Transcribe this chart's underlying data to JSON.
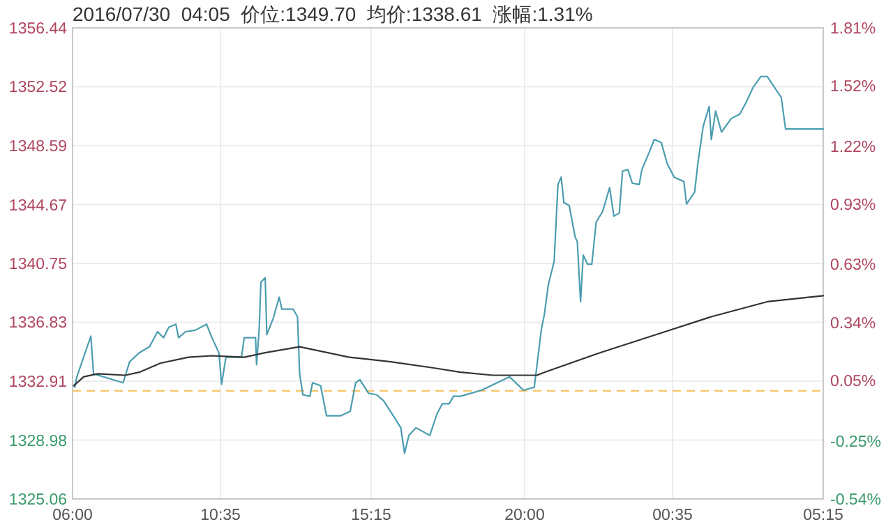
{
  "chart_data": {
    "type": "line",
    "title": "2016/07/30  04:05  价位:1349.70  均价:1338.61  涨幅:1.31%",
    "xlim": [
      "2016-07-29T06:00",
      "2016-07-30T05:15"
    ],
    "xticks": [
      {
        "value": "2016-07-29T06:00",
        "label": "06:00"
      },
      {
        "value": "2016-07-29T10:35",
        "label": "10:35"
      },
      {
        "value": "2016-07-29T15:15",
        "label": "15:15"
      },
      {
        "value": "2016-07-29T20:00",
        "label": "20:00"
      },
      {
        "value": "2016-07-30T00:35",
        "label": "00:35"
      },
      {
        "value": "2016-07-30T05:15",
        "label": "05:15"
      }
    ],
    "ylim": [
      1325.06,
      1356.44
    ],
    "yticks": [
      1325.06,
      1328.98,
      1332.91,
      1336.83,
      1340.75,
      1344.67,
      1348.59,
      1352.52,
      1356.44
    ],
    "y2lim": [
      -0.54,
      1.81
    ],
    "y2ticks": [
      {
        "value": -0.54,
        "label": "-0.54%"
      },
      {
        "value": -0.25,
        "label": "-0.25%"
      },
      {
        "value": 0.05,
        "label": "0.05%"
      },
      {
        "value": 0.34,
        "label": "0.34%"
      },
      {
        "value": 0.63,
        "label": "0.63%"
      },
      {
        "value": 0.93,
        "label": "0.93%"
      },
      {
        "value": 1.22,
        "label": "1.22%"
      },
      {
        "value": 1.52,
        "label": "1.52%"
      },
      {
        "value": 1.81,
        "label": "1.81%"
      }
    ],
    "grid": true,
    "line_style": "solid",
    "ref_lines": [
      {
        "axis": "y",
        "value": 1332.26,
        "color": "#f5c566",
        "line_style": "dashed"
      }
    ],
    "series": [
      {
        "color": "#4b9db0",
        "x": [
          "2016-07-29T06:04",
          "2016-07-29T06:08",
          "2016-07-29T06:34",
          "2016-07-29T06:39",
          "2016-07-29T07:34",
          "2016-07-29T07:46",
          "2016-07-29T08:04",
          "2016-07-29T08:23",
          "2016-07-29T08:38",
          "2016-07-29T08:49",
          "2016-07-29T08:59",
          "2016-07-29T09:12",
          "2016-07-29T09:17",
          "2016-07-29T09:30",
          "2016-07-29T09:48",
          "2016-07-29T10:09",
          "2016-07-29T10:19",
          "2016-07-29T10:32",
          "2016-07-29T10:37",
          "2016-07-29T10:45",
          "2016-07-29T10:58",
          "2016-07-29T11:14",
          "2016-07-29T11:19",
          "2016-07-29T11:40",
          "2016-07-29T11:42",
          "2016-07-29T11:47",
          "2016-07-29T11:50",
          "2016-07-29T11:58",
          "2016-07-29T12:01",
          "2016-07-29T12:13",
          "2016-07-29T12:24",
          "2016-07-29T12:29",
          "2016-07-29T12:50",
          "2016-07-29T12:58",
          "2016-07-29T13:02",
          "2016-07-29T13:08",
          "2016-07-29T13:21",
          "2016-07-29T13:26",
          "2016-07-29T13:41",
          "2016-07-29T13:52",
          "2016-07-29T14:18",
          "2016-07-29T14:36",
          "2016-07-29T14:46",
          "2016-07-29T14:54",
          "2016-07-29T15:10",
          "2016-07-29T15:25",
          "2016-07-29T15:38",
          "2016-07-29T15:56",
          "2016-07-29T16:10",
          "2016-07-29T16:17",
          "2016-07-29T16:25",
          "2016-07-29T16:38",
          "2016-07-29T17:04",
          "2016-07-29T17:17",
          "2016-07-29T17:27",
          "2016-07-29T17:40",
          "2016-07-29T17:48",
          "2016-07-29T18:01",
          "2016-07-29T18:40",
          "2016-07-29T19:32",
          "2016-07-29T19:58",
          "2016-07-29T20:18",
          "2016-07-29T20:31",
          "2016-07-29T20:37",
          "2016-07-29T20:44",
          "2016-07-29T20:55",
          "2016-07-29T21:02",
          "2016-07-29T21:08",
          "2016-07-29T21:13",
          "2016-07-29T21:23",
          "2016-07-29T21:34",
          "2016-07-29T21:38",
          "2016-07-29T21:44",
          "2016-07-29T21:49",
          "2016-07-29T21:57",
          "2016-07-29T22:05",
          "2016-07-29T22:13",
          "2016-07-29T22:25",
          "2016-07-29T22:38",
          "2016-07-29T22:46",
          "2016-07-29T22:56",
          "2016-07-29T23:02",
          "2016-07-29T23:12",
          "2016-07-29T23:20",
          "2016-07-29T23:33",
          "2016-07-29T23:38",
          "2016-07-29T23:51",
          "2016-07-30T00:01",
          "2016-07-30T00:14",
          "2016-07-30T00:25",
          "2016-07-30T00:38",
          "2016-07-30T00:56",
          "2016-07-30T01:01",
          "2016-07-30T01:16",
          "2016-07-30T01:22",
          "2016-07-30T01:32",
          "2016-07-30T01:43",
          "2016-07-30T01:47",
          "2016-07-30T01:55",
          "2016-07-30T02:06",
          "2016-07-30T02:24",
          "2016-07-30T02:40",
          "2016-07-30T02:52",
          "2016-07-30T03:05",
          "2016-07-30T03:19",
          "2016-07-30T03:31",
          "2016-07-30T03:44",
          "2016-07-30T03:57",
          "2016-07-30T04:05",
          "2016-07-30T05:15"
        ],
        "values": [
          1332.5,
          1333.2,
          1335.9,
          1333.4,
          1332.8,
          1334.2,
          1334.8,
          1335.2,
          1336.2,
          1335.8,
          1336.5,
          1336.7,
          1335.8,
          1336.2,
          1336.3,
          1336.7,
          1335.8,
          1334.8,
          1332.7,
          1334.5,
          1334.5,
          1334.5,
          1335.8,
          1335.8,
          1334.0,
          1336.5,
          1339.5,
          1339.8,
          1336.0,
          1337.1,
          1338.5,
          1337.7,
          1337.7,
          1337.2,
          1333.4,
          1332.0,
          1331.9,
          1332.8,
          1332.6,
          1330.6,
          1330.6,
          1330.9,
          1332.8,
          1333.0,
          1332.1,
          1332.0,
          1331.6,
          1330.6,
          1329.8,
          1328.1,
          1329.3,
          1329.8,
          1329.3,
          1330.7,
          1331.4,
          1331.4,
          1331.9,
          1331.9,
          1332.3,
          1333.2,
          1332.3,
          1332.5,
          1336.3,
          1337.4,
          1339.3,
          1340.9,
          1346.0,
          1346.5,
          1344.8,
          1344.6,
          1342.5,
          1342.2,
          1338.2,
          1341.3,
          1340.7,
          1340.7,
          1343.5,
          1344.2,
          1345.8,
          1343.9,
          1344.1,
          1346.9,
          1347.0,
          1346.1,
          1346.0,
          1347.0,
          1348.1,
          1349.0,
          1348.8,
          1347.4,
          1346.5,
          1346.2,
          1344.7,
          1345.5,
          1347.4,
          1349.9,
          1351.2,
          1349.0,
          1350.9,
          1349.5,
          1350.4,
          1350.7,
          1351.5,
          1352.5,
          1353.2,
          1353.2,
          1352.5,
          1351.8,
          1349.7,
          1349.7
        ]
      },
      {
        "color": "#333333",
        "x": [
          "2016-07-29T06:02",
          "2016-07-29T06:21",
          "2016-07-29T06:47",
          "2016-07-29T07:38",
          "2016-07-29T08:04",
          "2016-07-29T08:43",
          "2016-07-29T09:35",
          "2016-07-29T10:19",
          "2016-07-29T11:19",
          "2016-07-29T11:58",
          "2016-07-29T13:02",
          "2016-07-29T14:34",
          "2016-07-29T15:51",
          "2016-07-29T17:09",
          "2016-07-29T18:01",
          "2016-07-29T19:01",
          "2016-07-29T20:23",
          "2016-07-29T20:37",
          "2016-07-29T22:20",
          "2016-07-30T00:04",
          "2016-07-30T01:47",
          "2016-07-30T03:31",
          "2016-07-30T05:15"
        ],
        "values": [
          1332.6,
          1333.2,
          1333.4,
          1333.3,
          1333.5,
          1334.1,
          1334.5,
          1334.6,
          1334.5,
          1334.8,
          1335.2,
          1334.5,
          1334.2,
          1333.8,
          1333.5,
          1333.3,
          1333.3,
          1333.5,
          1334.8,
          1336.0,
          1337.2,
          1338.2,
          1338.6
        ]
      }
    ]
  }
}
